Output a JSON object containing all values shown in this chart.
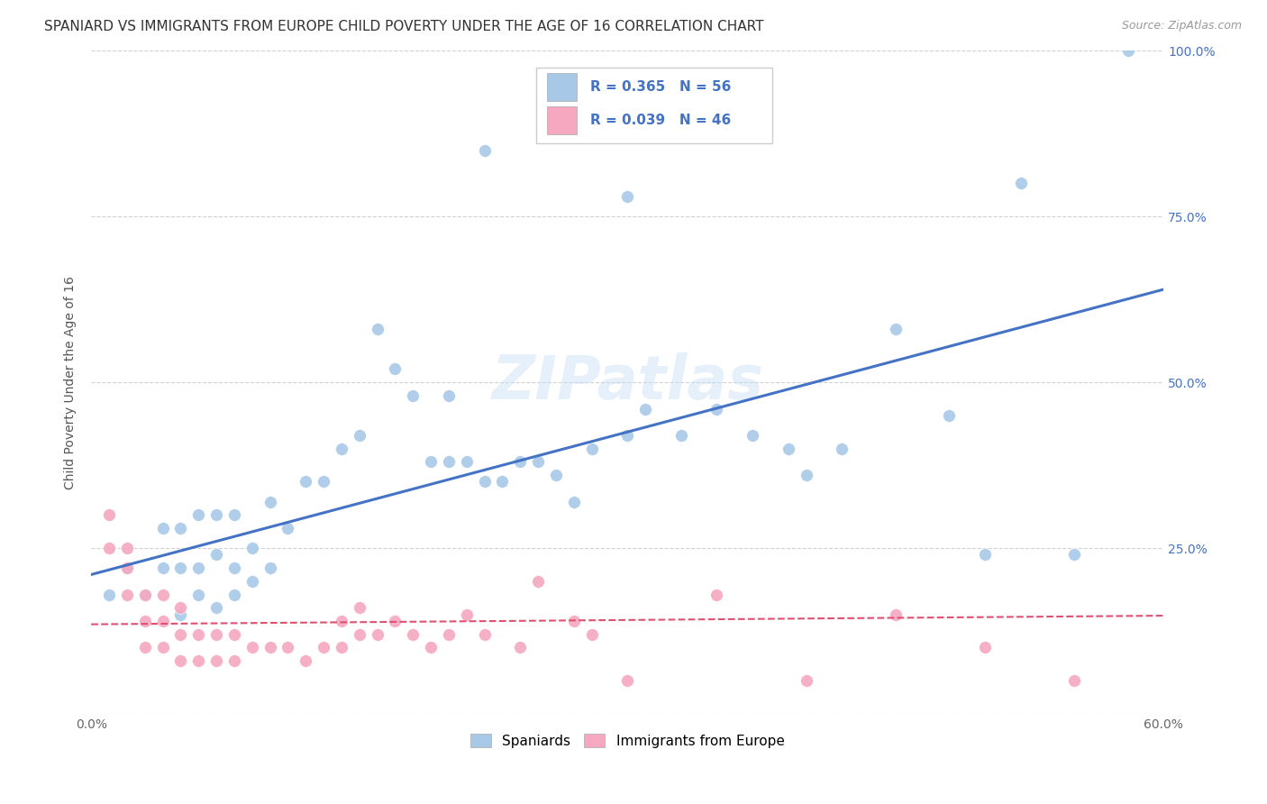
{
  "title": "SPANIARD VS IMMIGRANTS FROM EUROPE CHILD POVERTY UNDER THE AGE OF 16 CORRELATION CHART",
  "source": "Source: ZipAtlas.com",
  "ylabel": "Child Poverty Under the Age of 16",
  "xlim": [
    0.0,
    0.6
  ],
  "ylim": [
    0.0,
    1.0
  ],
  "xticks": [
    0.0,
    0.1,
    0.2,
    0.3,
    0.4,
    0.5,
    0.6
  ],
  "xticklabels": [
    "0.0%",
    "",
    "",
    "",
    "",
    "",
    "60.0%"
  ],
  "yticks": [
    0.0,
    0.25,
    0.5,
    0.75,
    1.0
  ],
  "yticklabels": [
    "",
    "25.0%",
    "50.0%",
    "75.0%",
    "100.0%"
  ],
  "blue_color": "#A8C8E8",
  "pink_color": "#F5A8C0",
  "blue_line_color": "#4472C4",
  "pink_line_color": "#E05070",
  "R_blue": 0.365,
  "N_blue": 56,
  "R_pink": 0.039,
  "N_pink": 46,
  "legend_label_blue": "Spaniards",
  "legend_label_pink": "Immigrants from Europe",
  "watermark": "ZIPatlas",
  "blue_scatter_x": [
    0.01,
    0.02,
    0.03,
    0.04,
    0.04,
    0.05,
    0.05,
    0.05,
    0.06,
    0.06,
    0.06,
    0.07,
    0.07,
    0.07,
    0.08,
    0.08,
    0.08,
    0.09,
    0.09,
    0.1,
    0.1,
    0.11,
    0.12,
    0.13,
    0.14,
    0.15,
    0.16,
    0.17,
    0.18,
    0.19,
    0.2,
    0.2,
    0.21,
    0.22,
    0.23,
    0.24,
    0.25,
    0.26,
    0.27,
    0.28,
    0.3,
    0.31,
    0.33,
    0.35,
    0.37,
    0.4,
    0.42,
    0.45,
    0.5,
    0.55,
    0.22,
    0.3,
    0.52,
    0.58,
    0.48,
    0.39
  ],
  "blue_scatter_y": [
    0.18,
    0.22,
    0.18,
    0.22,
    0.28,
    0.15,
    0.22,
    0.28,
    0.18,
    0.22,
    0.3,
    0.16,
    0.24,
    0.3,
    0.18,
    0.22,
    0.3,
    0.2,
    0.25,
    0.22,
    0.32,
    0.28,
    0.35,
    0.35,
    0.4,
    0.42,
    0.58,
    0.52,
    0.48,
    0.38,
    0.38,
    0.48,
    0.38,
    0.35,
    0.35,
    0.38,
    0.38,
    0.36,
    0.32,
    0.4,
    0.42,
    0.46,
    0.42,
    0.46,
    0.42,
    0.36,
    0.4,
    0.58,
    0.24,
    0.24,
    0.85,
    0.78,
    0.8,
    1.0,
    0.45,
    0.4
  ],
  "pink_scatter_x": [
    0.01,
    0.01,
    0.02,
    0.02,
    0.02,
    0.03,
    0.03,
    0.03,
    0.04,
    0.04,
    0.04,
    0.05,
    0.05,
    0.05,
    0.06,
    0.06,
    0.07,
    0.07,
    0.08,
    0.08,
    0.09,
    0.1,
    0.11,
    0.12,
    0.13,
    0.14,
    0.14,
    0.15,
    0.15,
    0.16,
    0.17,
    0.18,
    0.19,
    0.2,
    0.21,
    0.22,
    0.24,
    0.25,
    0.27,
    0.28,
    0.3,
    0.35,
    0.4,
    0.45,
    0.5,
    0.55
  ],
  "pink_scatter_y": [
    0.25,
    0.3,
    0.18,
    0.22,
    0.25,
    0.1,
    0.14,
    0.18,
    0.1,
    0.14,
    0.18,
    0.08,
    0.12,
    0.16,
    0.08,
    0.12,
    0.08,
    0.12,
    0.08,
    0.12,
    0.1,
    0.1,
    0.1,
    0.08,
    0.1,
    0.1,
    0.14,
    0.12,
    0.16,
    0.12,
    0.14,
    0.12,
    0.1,
    0.12,
    0.15,
    0.12,
    0.1,
    0.2,
    0.14,
    0.12,
    0.05,
    0.18,
    0.05,
    0.15,
    0.1,
    0.05
  ],
  "blue_line_x": [
    0.0,
    0.6
  ],
  "blue_line_y": [
    0.21,
    0.64
  ],
  "pink_line_x": [
    0.0,
    0.6
  ],
  "pink_line_y": [
    0.135,
    0.148
  ],
  "bg_color": "#FFFFFF",
  "grid_color": "#CCCCCC",
  "title_color": "#333333",
  "right_tick_color": "#4472C4",
  "title_fontsize": 11,
  "source_fontsize": 9,
  "ylabel_fontsize": 10
}
